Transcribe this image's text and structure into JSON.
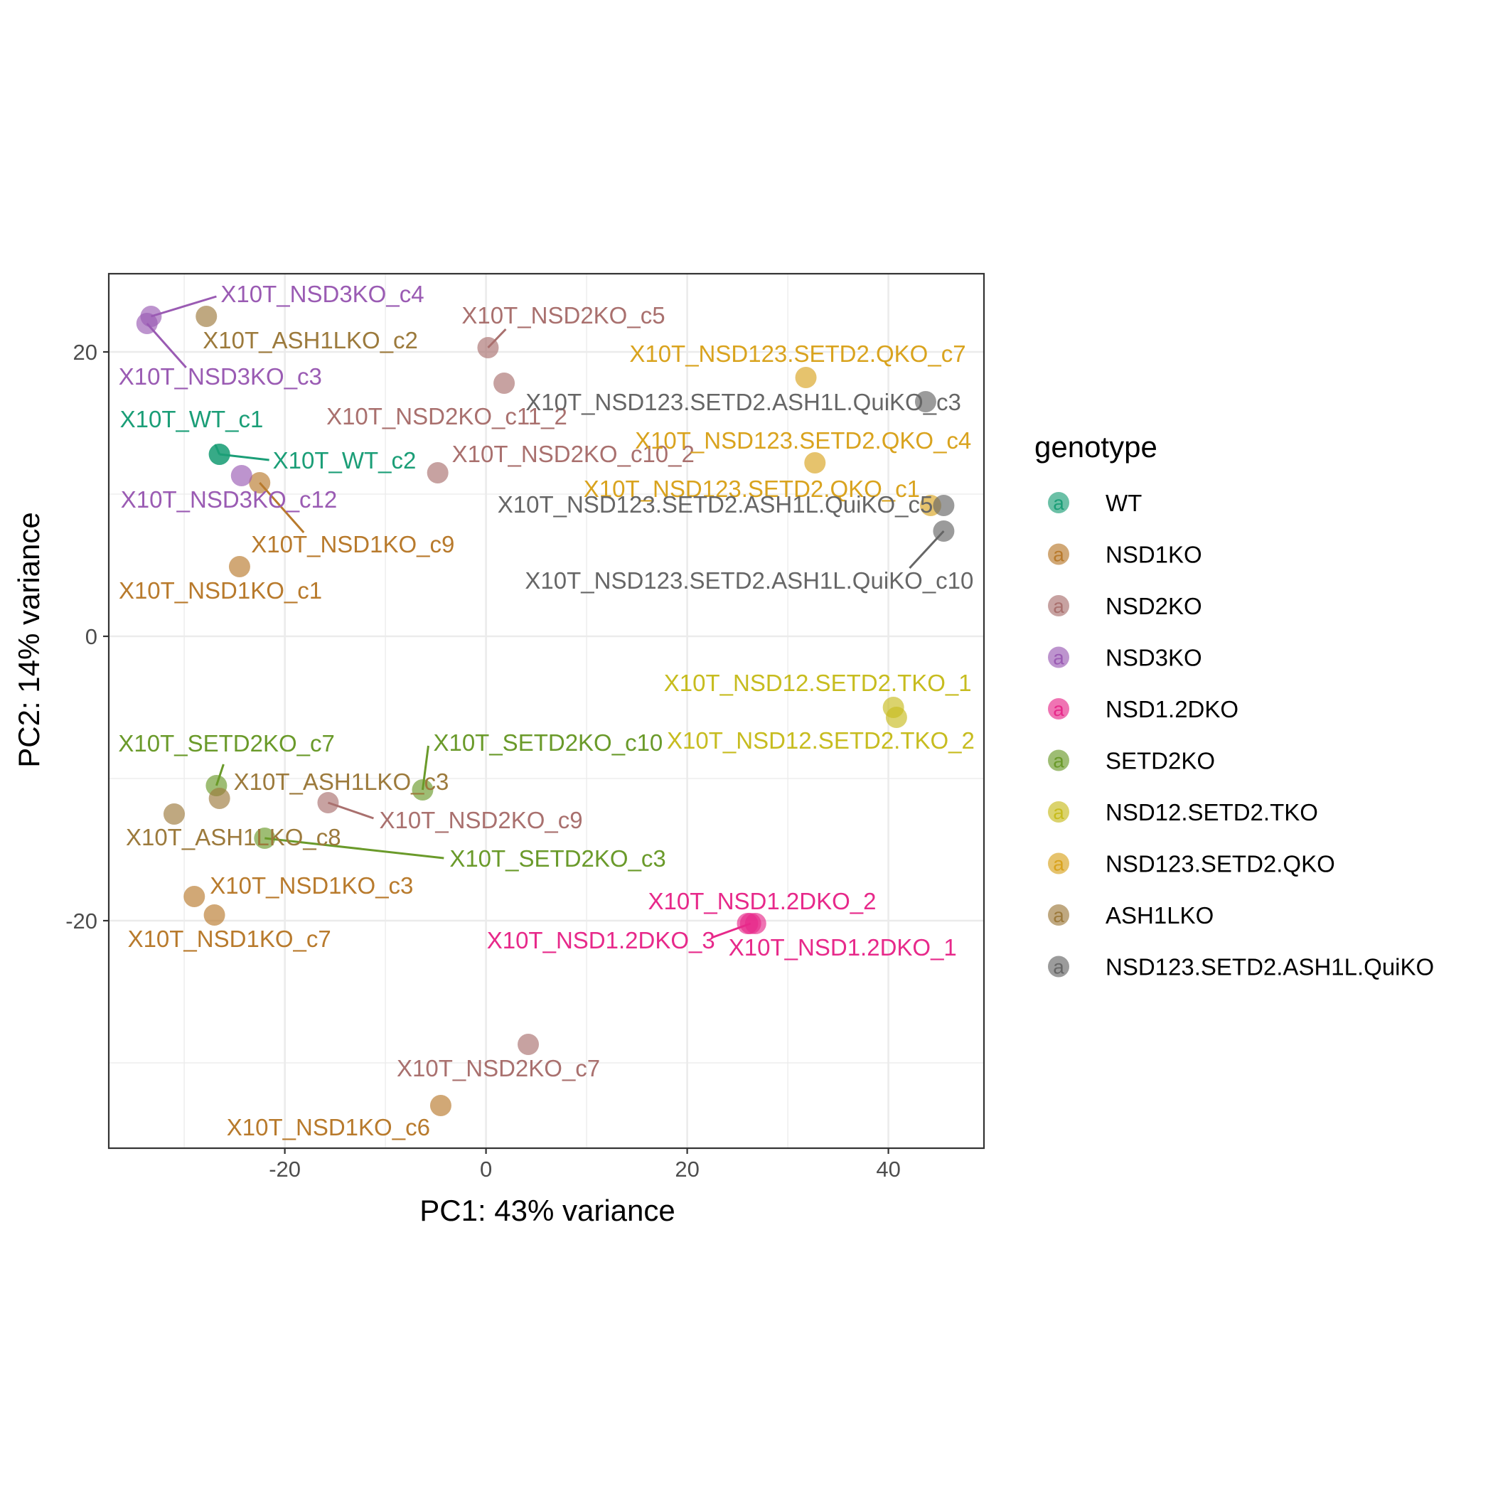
{
  "chart_data": {
    "type": "scatter",
    "xlabel": "PC1: 43% variance",
    "ylabel": "PC2: 14% variance",
    "xlim": [
      -37.5,
      49.5
    ],
    "ylim": [
      -36,
      25.5
    ],
    "x_ticks": [
      -20,
      0,
      20,
      40
    ],
    "x_tick_labels": [
      "-20",
      "0",
      "20",
      "40"
    ],
    "y_ticks": [
      -20,
      0,
      20
    ],
    "y_tick_labels": [
      "-20",
      "0",
      "20"
    ],
    "grid": true,
    "legend": {
      "title": "genotype",
      "position": "right",
      "glyph": "a",
      "entries": [
        {
          "name": "WT",
          "color": "#1B9E77"
        },
        {
          "name": "NSD1KO",
          "color": "#B87A2C"
        },
        {
          "name": "NSD2KO",
          "color": "#A9706E"
        },
        {
          "name": "NSD3KO",
          "color": "#9A5BB3"
        },
        {
          "name": "NSD1.2DKO",
          "color": "#E7298A"
        },
        {
          "name": "SETD2KO",
          "color": "#6A9A2A"
        },
        {
          "name": "NSD12.SETD2.TKO",
          "color": "#C7BC1F"
        },
        {
          "name": "NSD123.SETD2.QKO",
          "color": "#D9A31E"
        },
        {
          "name": "ASH1LKO",
          "color": "#9C7A3C"
        },
        {
          "name": "NSD123.SETD2.ASH1L.QuiKO",
          "color": "#666666"
        }
      ]
    },
    "series": [
      {
        "name": "WT",
        "points": [
          {
            "label": "X10T_WT_c1",
            "x": -26.5,
            "y": 12.8
          },
          {
            "label": "X10T_WT_c2",
            "x": -26.5,
            "y": 12.8
          }
        ]
      },
      {
        "name": "NSD1KO",
        "points": [
          {
            "label": "X10T_NSD1KO_c9",
            "x": -22.5,
            "y": 10.8
          },
          {
            "label": "X10T_NSD1KO_c1",
            "x": -24.5,
            "y": 4.9
          },
          {
            "label": "X10T_NSD1KO_c3",
            "x": -29.0,
            "y": -18.3
          },
          {
            "label": "X10T_NSD1KO_c7",
            "x": -27.0,
            "y": -19.6
          },
          {
            "label": "X10T_NSD1KO_c6",
            "x": -4.5,
            "y": -33.0
          }
        ]
      },
      {
        "name": "NSD2KO",
        "points": [
          {
            "label": "X10T_NSD2KO_c5",
            "x": 0.2,
            "y": 20.3
          },
          {
            "label": "X10T_NSD2KO_c11_2",
            "x": 1.8,
            "y": 17.8
          },
          {
            "label": "X10T_NSD2KO_c10_2",
            "x": -4.8,
            "y": 11.5
          },
          {
            "label": "X10T_NSD2KO_c9",
            "x": -15.7,
            "y": -11.7
          },
          {
            "label": "X10T_NSD2KO_c7",
            "x": 4.2,
            "y": -28.7
          }
        ]
      },
      {
        "name": "NSD3KO",
        "points": [
          {
            "label": "X10T_NSD3KO_c4",
            "x": -33.3,
            "y": 22.5
          },
          {
            "label": "X10T_NSD3KO_c3",
            "x": -33.7,
            "y": 22.0
          },
          {
            "label": "X10T_NSD3KO_c12",
            "x": -24.3,
            "y": 11.3
          }
        ]
      },
      {
        "name": "NSD1.2DKO",
        "points": [
          {
            "label": "X10T_NSD1.2DKO_2",
            "x": 26.0,
            "y": -20.2
          },
          {
            "label": "X10T_NSD1.2DKO_3",
            "x": 26.3,
            "y": -20.2
          },
          {
            "label": "X10T_NSD1.2DKO_1",
            "x": 26.8,
            "y": -20.2
          }
        ]
      },
      {
        "name": "SETD2KO",
        "points": [
          {
            "label": "X10T_SETD2KO_c7",
            "x": -26.8,
            "y": -10.5
          },
          {
            "label": "X10T_SETD2KO_c10",
            "x": -6.3,
            "y": -10.8
          },
          {
            "label": "X10T_SETD2KO_c3",
            "x": -22.0,
            "y": -14.2
          }
        ]
      },
      {
        "name": "NSD12.SETD2.TKO",
        "points": [
          {
            "label": "X10T_NSD12.SETD2.TKO_1",
            "x": 40.5,
            "y": -5.0
          },
          {
            "label": "X10T_NSD12.SETD2.TKO_2",
            "x": 40.8,
            "y": -5.7
          }
        ]
      },
      {
        "name": "NSD123.SETD2.QKO",
        "points": [
          {
            "label": "X10T_NSD123.SETD2.QKO_c7",
            "x": 31.8,
            "y": 18.2
          },
          {
            "label": "X10T_NSD123.SETD2.QKO_c4",
            "x": 32.7,
            "y": 12.2
          },
          {
            "label": "X10T_NSD123.SETD2.QKO_c1",
            "x": 44.2,
            "y": 9.2
          }
        ]
      },
      {
        "name": "ASH1LKO",
        "points": [
          {
            "label": "X10T_ASH1LKO_c2",
            "x": -27.8,
            "y": 22.5
          },
          {
            "label": "X10T_ASH1LKO_c3",
            "x": -26.5,
            "y": -11.4
          },
          {
            "label": "X10T_ASH1LKO_c8",
            "x": -31.0,
            "y": -12.5
          }
        ]
      },
      {
        "name": "NSD123.SETD2.ASH1L.QuiKO",
        "points": [
          {
            "label": "X10T_NSD123.SETD2.ASH1L.QuiKO_c3",
            "x": 43.7,
            "y": 16.5
          },
          {
            "label": "X10T_NSD123.SETD2.ASH1L.QuiKO_c5",
            "x": 45.5,
            "y": 9.2
          },
          {
            "label": "X10T_NSD123.SETD2.ASH1L.QuiKO_c10",
            "x": 45.5,
            "y": 7.4
          }
        ]
      }
    ]
  }
}
